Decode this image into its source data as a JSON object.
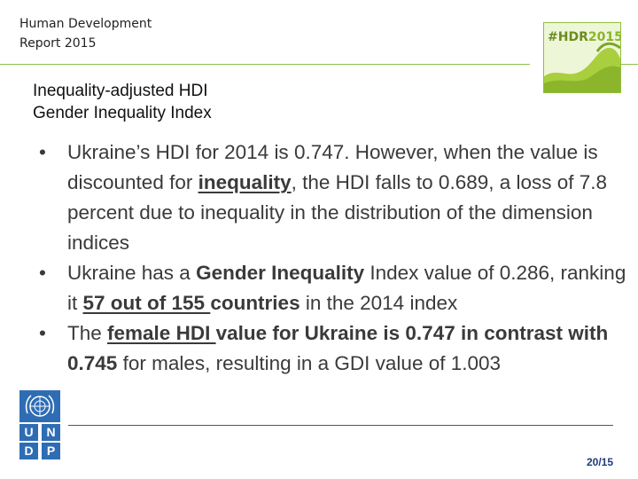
{
  "header": {
    "report_line1": "Human Development",
    "report_line2": "Report 2015",
    "logo": {
      "hash_hdr": "#HDR",
      "year": "2015",
      "colors": {
        "text": "#6b8c1e",
        "bg": "#eef6d8",
        "wave": "#8bb52a"
      }
    }
  },
  "heading": {
    "line1": "Inequality-adjusted HDI",
    "line2": "Gender Inequality Index"
  },
  "bullets": [
    {
      "parts": [
        "Ukraine’s HDI for 2014 is 0.747. However, when the value is discounted for ",
        "inequality",
        ", the HDI falls to 0.689, a loss of 7.8 percent due to inequality in the distribution of the dimension indices"
      ]
    },
    {
      "parts": [
        "Ukraine has a ",
        "Gender Inequality",
        " Index value of 0.286, ranking it ",
        "57 out of 155 ",
        "countries",
        " in the 2014 index"
      ]
    },
    {
      "parts": [
        "The ",
        "female HDI ",
        "value for Ukraine is 0.747 in contrast with 0.745",
        " for males, resulting in a GDI value of 1.003"
      ]
    }
  ],
  "undp_logo": {
    "letters": [
      "U",
      "N",
      "D",
      "P"
    ],
    "color": "#2e6db4",
    "icon": "un-emblem-icon"
  },
  "footer": {
    "page_number": "20/15"
  },
  "colors": {
    "accent_line": "#8bc34a",
    "text": "#3a3a3a",
    "page_number": "#1f3c7a"
  }
}
